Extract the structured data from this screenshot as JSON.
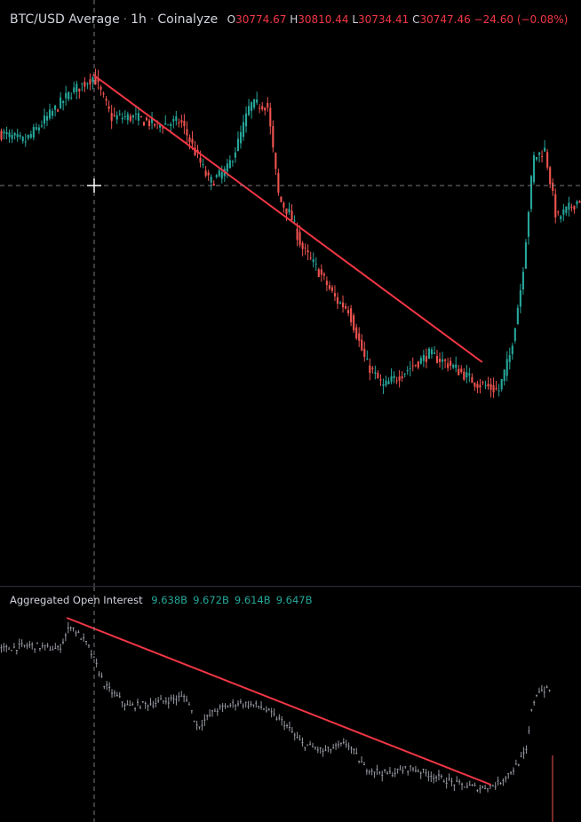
{
  "price_pane": {
    "symbol": "BTC/USD Average",
    "interval": "1h",
    "source": "Coinalyze",
    "ohlc": [
      {
        "label": "O",
        "value": "30774.67"
      },
      {
        "label": "H",
        "value": "30810.44"
      },
      {
        "label": "L",
        "value": "30734.41"
      },
      {
        "label": "C",
        "value": "30747.46"
      }
    ],
    "change": "−24.60 (−0.08%)"
  },
  "oi_pane": {
    "title": "Aggregated Open Interest",
    "values": [
      "9.638B",
      "9.672B",
      "9.614B",
      "9.647B"
    ]
  },
  "colors": {
    "background": "#000000",
    "up": "#26a69a",
    "down": "#ef5350",
    "oi_bar": "#9598a1",
    "trendline": "#f23645",
    "crosshair": "#9598a1"
  },
  "chart_data": [
    {
      "type": "candlestick",
      "series": [
        {
          "name": "BTC/USD Average"
        }
      ],
      "y_range_approx": [
        30300,
        30900
      ],
      "trendline": {
        "from_index": 0.16,
        "to_index": 0.83,
        "direction": "down"
      },
      "waypoints": [
        [
          0,
          0.76
        ],
        [
          0.04,
          0.74
        ],
        [
          0.08,
          0.8
        ],
        [
          0.12,
          0.86
        ],
        [
          0.16,
          0.9
        ],
        [
          0.19,
          0.8
        ],
        [
          0.23,
          0.8
        ],
        [
          0.27,
          0.78
        ],
        [
          0.31,
          0.79
        ],
        [
          0.33,
          0.73
        ],
        [
          0.36,
          0.64
        ],
        [
          0.39,
          0.67
        ],
        [
          0.41,
          0.74
        ],
        [
          0.43,
          0.83
        ],
        [
          0.46,
          0.83
        ],
        [
          0.48,
          0.6
        ],
        [
          0.5,
          0.56
        ],
        [
          0.52,
          0.48
        ],
        [
          0.55,
          0.42
        ],
        [
          0.58,
          0.35
        ],
        [
          0.6,
          0.33
        ],
        [
          0.63,
          0.2
        ],
        [
          0.66,
          0.14
        ],
        [
          0.7,
          0.18
        ],
        [
          0.74,
          0.22
        ],
        [
          0.78,
          0.19
        ],
        [
          0.82,
          0.15
        ],
        [
          0.86,
          0.13
        ],
        [
          0.88,
          0.22
        ],
        [
          0.9,
          0.4
        ],
        [
          0.92,
          0.7
        ],
        [
          0.94,
          0.72
        ],
        [
          0.96,
          0.55
        ],
        [
          1,
          0.6
        ]
      ]
    },
    {
      "type": "bar",
      "series": [
        {
          "name": "Aggregated Open Interest"
        }
      ],
      "trendline": {
        "from_index": 0.115,
        "to_index": 0.845,
        "direction": "down"
      },
      "waypoints": [
        [
          0,
          0.78
        ],
        [
          0.05,
          0.8
        ],
        [
          0.1,
          0.78
        ],
        [
          0.12,
          0.9
        ],
        [
          0.15,
          0.8
        ],
        [
          0.18,
          0.6
        ],
        [
          0.22,
          0.5
        ],
        [
          0.27,
          0.52
        ],
        [
          0.32,
          0.55
        ],
        [
          0.34,
          0.4
        ],
        [
          0.37,
          0.48
        ],
        [
          0.41,
          0.52
        ],
        [
          0.45,
          0.5
        ],
        [
          0.49,
          0.42
        ],
        [
          0.52,
          0.32
        ],
        [
          0.56,
          0.28
        ],
        [
          0.6,
          0.32
        ],
        [
          0.63,
          0.2
        ],
        [
          0.67,
          0.17
        ],
        [
          0.71,
          0.2
        ],
        [
          0.75,
          0.16
        ],
        [
          0.79,
          0.12
        ],
        [
          0.83,
          0.1
        ],
        [
          0.86,
          0.12
        ],
        [
          0.89,
          0.2
        ],
        [
          0.91,
          0.28
        ],
        [
          0.92,
          0.5
        ],
        [
          0.93,
          0.58
        ],
        [
          0.95,
          0.58
        ]
      ]
    }
  ]
}
